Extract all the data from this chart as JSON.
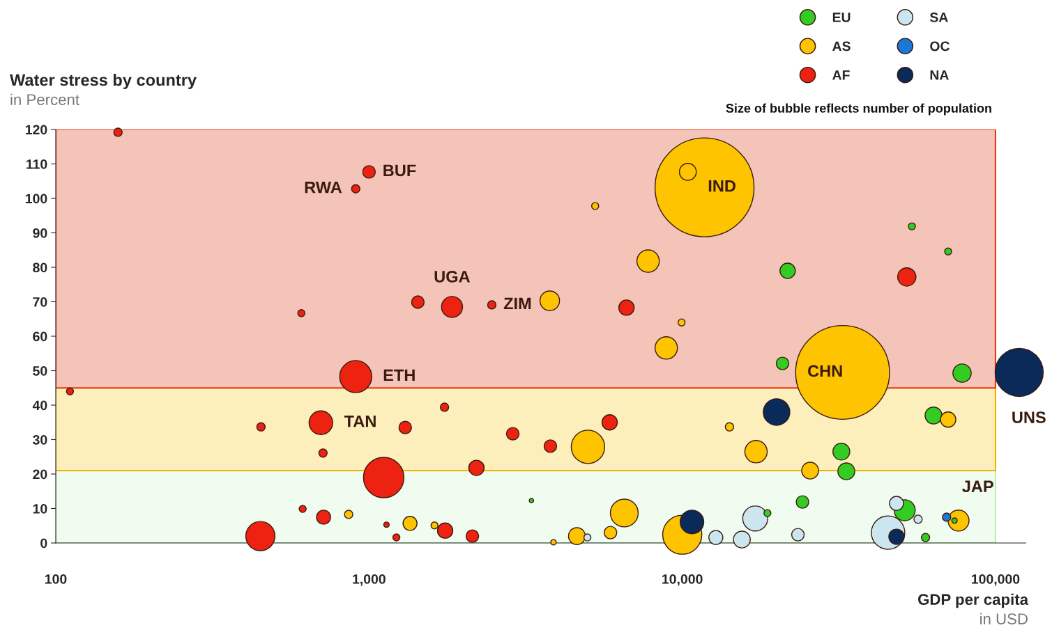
{
  "chart_data": {
    "type": "bubble",
    "title": "Water stress by country",
    "subtitle": "in Percent",
    "xlabel": "GDP per capita",
    "log": "x",
    "xlim": [
      100,
      125000
    ],
    "xticks": [
      100,
      {
        "value": 1000,
        "label": "1,000"
      },
      {
        "value": 10000,
        "label": "10,000"
      },
      {
        "value": 100000,
        "label": "100,000"
      }
    ],
    "ylim": [
      0,
      120
    ],
    "yticks": [
      0,
      10,
      20,
      30,
      40,
      50,
      60,
      70,
      80,
      90,
      100,
      110,
      120
    ],
    "grid": false,
    "legend": "top right",
    "bands": [
      {
        "axis": "y",
        "from": 0,
        "to": 21,
        "color": "#effcef"
      },
      {
        "axis": "y",
        "from": 21,
        "to": 45,
        "color": "#fcefbc"
      },
      {
        "axis": "y",
        "from": 45,
        "to": 120,
        "color": "#f4c4b8"
      }
    ],
    "series": [
      {
        "name": "EU",
        "color": "#33cc22",
        "x": [
          21700,
          54100,
          70600,
          20900,
          78200,
          63400,
          32200,
          33400,
          24200,
          51300,
          18700,
          59800,
          74000,
          3300
        ],
        "values": [
          79.0,
          91.9,
          84.6,
          52.1,
          49.3,
          37.0,
          26.5,
          20.8,
          11.9,
          9.5,
          8.7,
          1.6,
          6.5,
          12.3
        ],
        "sizes": [
          0.024,
          0.005,
          0.005,
          0.016,
          0.034,
          0.029,
          0.029,
          0.029,
          0.016,
          0.045,
          0.005,
          0.007,
          0.003,
          0.002
        ]
      },
      {
        "name": "AS",
        "color": "#ffc400",
        "x": [
          11780,
          10420,
          5272,
          7780,
          3776,
          8890,
          9950,
          32500,
          5000,
          14150,
          17200,
          25600,
          70600,
          6530,
          10000,
          4610,
          5900,
          1352,
          1618,
          861,
          76200,
          3880
        ],
        "values": [
          103.2,
          107.7,
          97.8,
          81.8,
          70.3,
          56.6,
          64.0,
          49.5,
          27.9,
          33.7,
          26.5,
          21.0,
          35.8,
          8.7,
          2.4,
          2.0,
          3.0,
          5.7,
          5.1,
          8.3,
          6.5,
          0.2
        ],
        "sizes": [
          1,
          0.029,
          0.005,
          0.051,
          0.039,
          0.051,
          0.005,
          0.9,
          0.114,
          0.007,
          0.051,
          0.029,
          0.024,
          0.079,
          0.156,
          0.029,
          0.016,
          0.02,
          0.005,
          0.007,
          0.045,
          0.003
        ]
      },
      {
        "name": "AF",
        "color": "#ee2211",
        "x": [
          158,
          1000,
          907,
          608,
          1432,
          1841,
          2466,
          907,
          6637,
          52100,
          111,
          702,
          452,
          713,
          1305,
          1742,
          2877,
          3793,
          5865,
          2203,
          1114,
          450,
          614,
          716,
          1137,
          1223,
          1750,
          2138
        ],
        "values": [
          119.2,
          107.7,
          102.8,
          66.7,
          69.9,
          68.5,
          69.1,
          48.3,
          68.3,
          77.2,
          44.0,
          34.9,
          33.7,
          26.1,
          33.5,
          39.4,
          31.7,
          28.1,
          35.0,
          21.8,
          19.0,
          2.0,
          9.9,
          7.5,
          5.3,
          1.6,
          3.6,
          2.0
        ],
        "sizes": [
          0.007,
          0.016,
          0.007,
          0.005,
          0.016,
          0.045,
          0.007,
          0.105,
          0.024,
          0.034,
          0.005,
          0.057,
          0.007,
          0.007,
          0.016,
          0.007,
          0.016,
          0.016,
          0.024,
          0.024,
          0.167,
          0.087,
          0.005,
          0.02,
          0.003,
          0.005,
          0.024,
          0.016
        ]
      },
      {
        "name": "SA",
        "color": "#cce6f0",
        "x": [
          17100,
          48300,
          45400,
          56600,
          23400,
          12800,
          15500,
          4980
        ],
        "values": [
          7.1,
          11.5,
          3.0,
          6.9,
          2.4,
          1.6,
          1.0,
          1.6
        ],
        "sizes": [
          0.064,
          0.02,
          0.114,
          0.007,
          0.016,
          0.02,
          0.029,
          0.005
        ]
      },
      {
        "name": "OC",
        "color": "#1a78d8",
        "x": [
          69800
        ],
        "values": [
          7.5
        ],
        "sizes": [
          0.007
        ]
      },
      {
        "name": "NA",
        "color": "#0a2a5a",
        "x": [
          119000,
          20000,
          10740,
          48300
        ],
        "values": [
          49.5,
          38.0,
          6.1,
          1.8
        ],
        "sizes": [
          0.236,
          0.072,
          0.057,
          0.024
        ]
      }
    ],
    "annotations": [
      {
        "text": "BUF",
        "x": 1000,
        "y": 107.7
      },
      {
        "text": "RWA",
        "x": 907,
        "y": 102.8
      },
      {
        "text": "UGA",
        "x": 1841,
        "y": 68.5
      },
      {
        "text": "ZIM",
        "x": 2466,
        "y": 69.1
      },
      {
        "text": "ETH",
        "x": 907,
        "y": 48.3
      },
      {
        "text": "TAN",
        "x": 702,
        "y": 34.9
      },
      {
        "text": "IND",
        "x": 11780,
        "y": 103.2
      },
      {
        "text": "CHN",
        "x": 32500,
        "y": 49.5
      },
      {
        "text": "JAP",
        "x": 76200,
        "y": 6.5
      },
      {
        "text": "UNS",
        "x": 119000,
        "y": 49.5
      },
      "Size of bubble reflects number of population",
      "in USD"
    ]
  }
}
